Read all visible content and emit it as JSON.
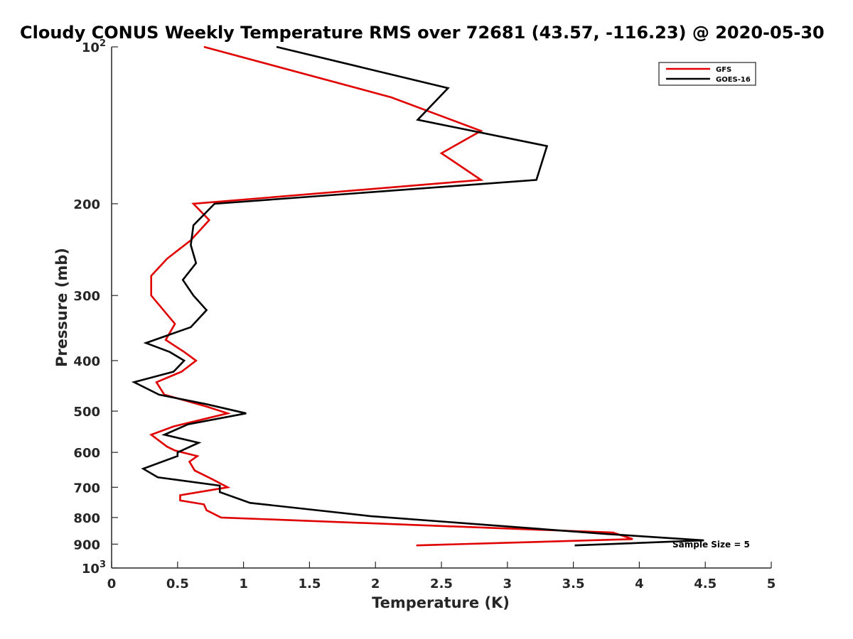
{
  "chart_data": {
    "type": "line",
    "title": "Cloudy CONUS Weekly Temperature RMS over 72681 (43.57, -116.23) @ 2020-05-30",
    "xlabel": "Temperature (K)",
    "ylabel": "Pressure (mb)",
    "xlim": [
      0,
      5
    ],
    "ylim": [
      100,
      1000
    ],
    "y_scale": "log",
    "y_reversed": true,
    "grid": false,
    "legend_position": "top-right",
    "x_ticks": [
      "0",
      "0.5",
      "1",
      "1.5",
      "2",
      "2.5",
      "3",
      "3.5",
      "4",
      "4.5",
      "5"
    ],
    "y_ticks": [
      {
        "value": 100,
        "base": "10",
        "exp": "2"
      },
      {
        "value": 200,
        "label": "200"
      },
      {
        "value": 300,
        "label": "300"
      },
      {
        "value": 400,
        "label": "400"
      },
      {
        "value": 500,
        "label": "500"
      },
      {
        "value": 600,
        "label": "600"
      },
      {
        "value": 700,
        "label": "700"
      },
      {
        "value": 800,
        "label": "800"
      },
      {
        "value": 900,
        "label": "900"
      },
      {
        "value": 1000,
        "base": "10",
        "exp": "3"
      }
    ],
    "series": [
      {
        "name": "GFS",
        "color": "#e00000",
        "points": [
          [
            0.7,
            100
          ],
          [
            2.12,
            125
          ],
          [
            2.8,
            145
          ],
          [
            2.5,
            160
          ],
          [
            2.8,
            180
          ],
          [
            0.62,
            200
          ],
          [
            0.74,
            215
          ],
          [
            0.6,
            235
          ],
          [
            0.42,
            255
          ],
          [
            0.3,
            275
          ],
          [
            0.3,
            300
          ],
          [
            0.48,
            340
          ],
          [
            0.41,
            365
          ],
          [
            0.55,
            385
          ],
          [
            0.64,
            400
          ],
          [
            0.53,
            420
          ],
          [
            0.34,
            440
          ],
          [
            0.4,
            465
          ],
          [
            0.72,
            490
          ],
          [
            0.88,
            505
          ],
          [
            0.47,
            535
          ],
          [
            0.3,
            555
          ],
          [
            0.42,
            585
          ],
          [
            0.48,
            595
          ],
          [
            0.65,
            610
          ],
          [
            0.59,
            625
          ],
          [
            0.63,
            650
          ],
          [
            0.76,
            675
          ],
          [
            0.88,
            700
          ],
          [
            0.52,
            725
          ],
          [
            0.52,
            742
          ],
          [
            0.7,
            755
          ],
          [
            0.72,
            775
          ],
          [
            0.83,
            800
          ],
          [
            3.8,
            855
          ],
          [
            3.95,
            880
          ],
          [
            2.31,
            905
          ]
        ]
      },
      {
        "name": "GOES-16",
        "color": "#000000",
        "points": [
          [
            1.25,
            100
          ],
          [
            2.55,
            120
          ],
          [
            2.32,
            138
          ],
          [
            3.3,
            155
          ],
          [
            3.22,
            180
          ],
          [
            0.78,
            200
          ],
          [
            0.62,
            220
          ],
          [
            0.6,
            240
          ],
          [
            0.64,
            260
          ],
          [
            0.54,
            280
          ],
          [
            0.62,
            300
          ],
          [
            0.72,
            320
          ],
          [
            0.6,
            345
          ],
          [
            0.26,
            370
          ],
          [
            0.44,
            385
          ],
          [
            0.55,
            400
          ],
          [
            0.47,
            420
          ],
          [
            0.17,
            440
          ],
          [
            0.36,
            465
          ],
          [
            0.72,
            485
          ],
          [
            1.02,
            505
          ],
          [
            0.58,
            530
          ],
          [
            0.4,
            555
          ],
          [
            0.66,
            575
          ],
          [
            0.5,
            600
          ],
          [
            0.5,
            610
          ],
          [
            0.24,
            645
          ],
          [
            0.35,
            670
          ],
          [
            0.82,
            695
          ],
          [
            0.82,
            715
          ],
          [
            1.05,
            750
          ],
          [
            1.96,
            795
          ],
          [
            3.74,
            860
          ],
          [
            4.49,
            885
          ],
          [
            3.51,
            905
          ]
        ]
      }
    ],
    "annotations": [
      "Sample Size = 5"
    ]
  }
}
